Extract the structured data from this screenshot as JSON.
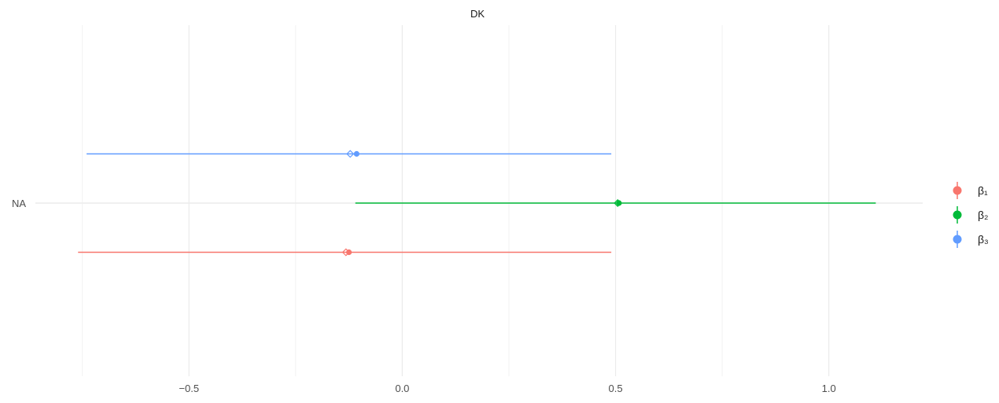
{
  "chart_data": {
    "type": "forest",
    "title": "DK",
    "xlabel": "",
    "ylabel": "",
    "y_category": "NA",
    "xlim": [
      -0.86,
      1.22
    ],
    "x_ticks": [
      -0.5,
      0.0,
      0.5,
      1.0
    ],
    "x_tick_labels": [
      "−0.5",
      "0.0",
      "0.5",
      "1.0"
    ],
    "grid": true,
    "legend_position": "right",
    "series": [
      {
        "name": "β₁",
        "color": "#F8766D",
        "lower": -0.76,
        "upper": 0.49,
        "point": -0.125,
        "diamond": -0.132
      },
      {
        "name": "β₂",
        "color": "#00BA38",
        "lower": -0.11,
        "upper": 1.11,
        "point": 0.508,
        "diamond": 0.505
      },
      {
        "name": "β₃",
        "color": "#619CFF",
        "lower": -0.74,
        "upper": 0.49,
        "point": -0.107,
        "diamond": -0.122
      }
    ]
  }
}
